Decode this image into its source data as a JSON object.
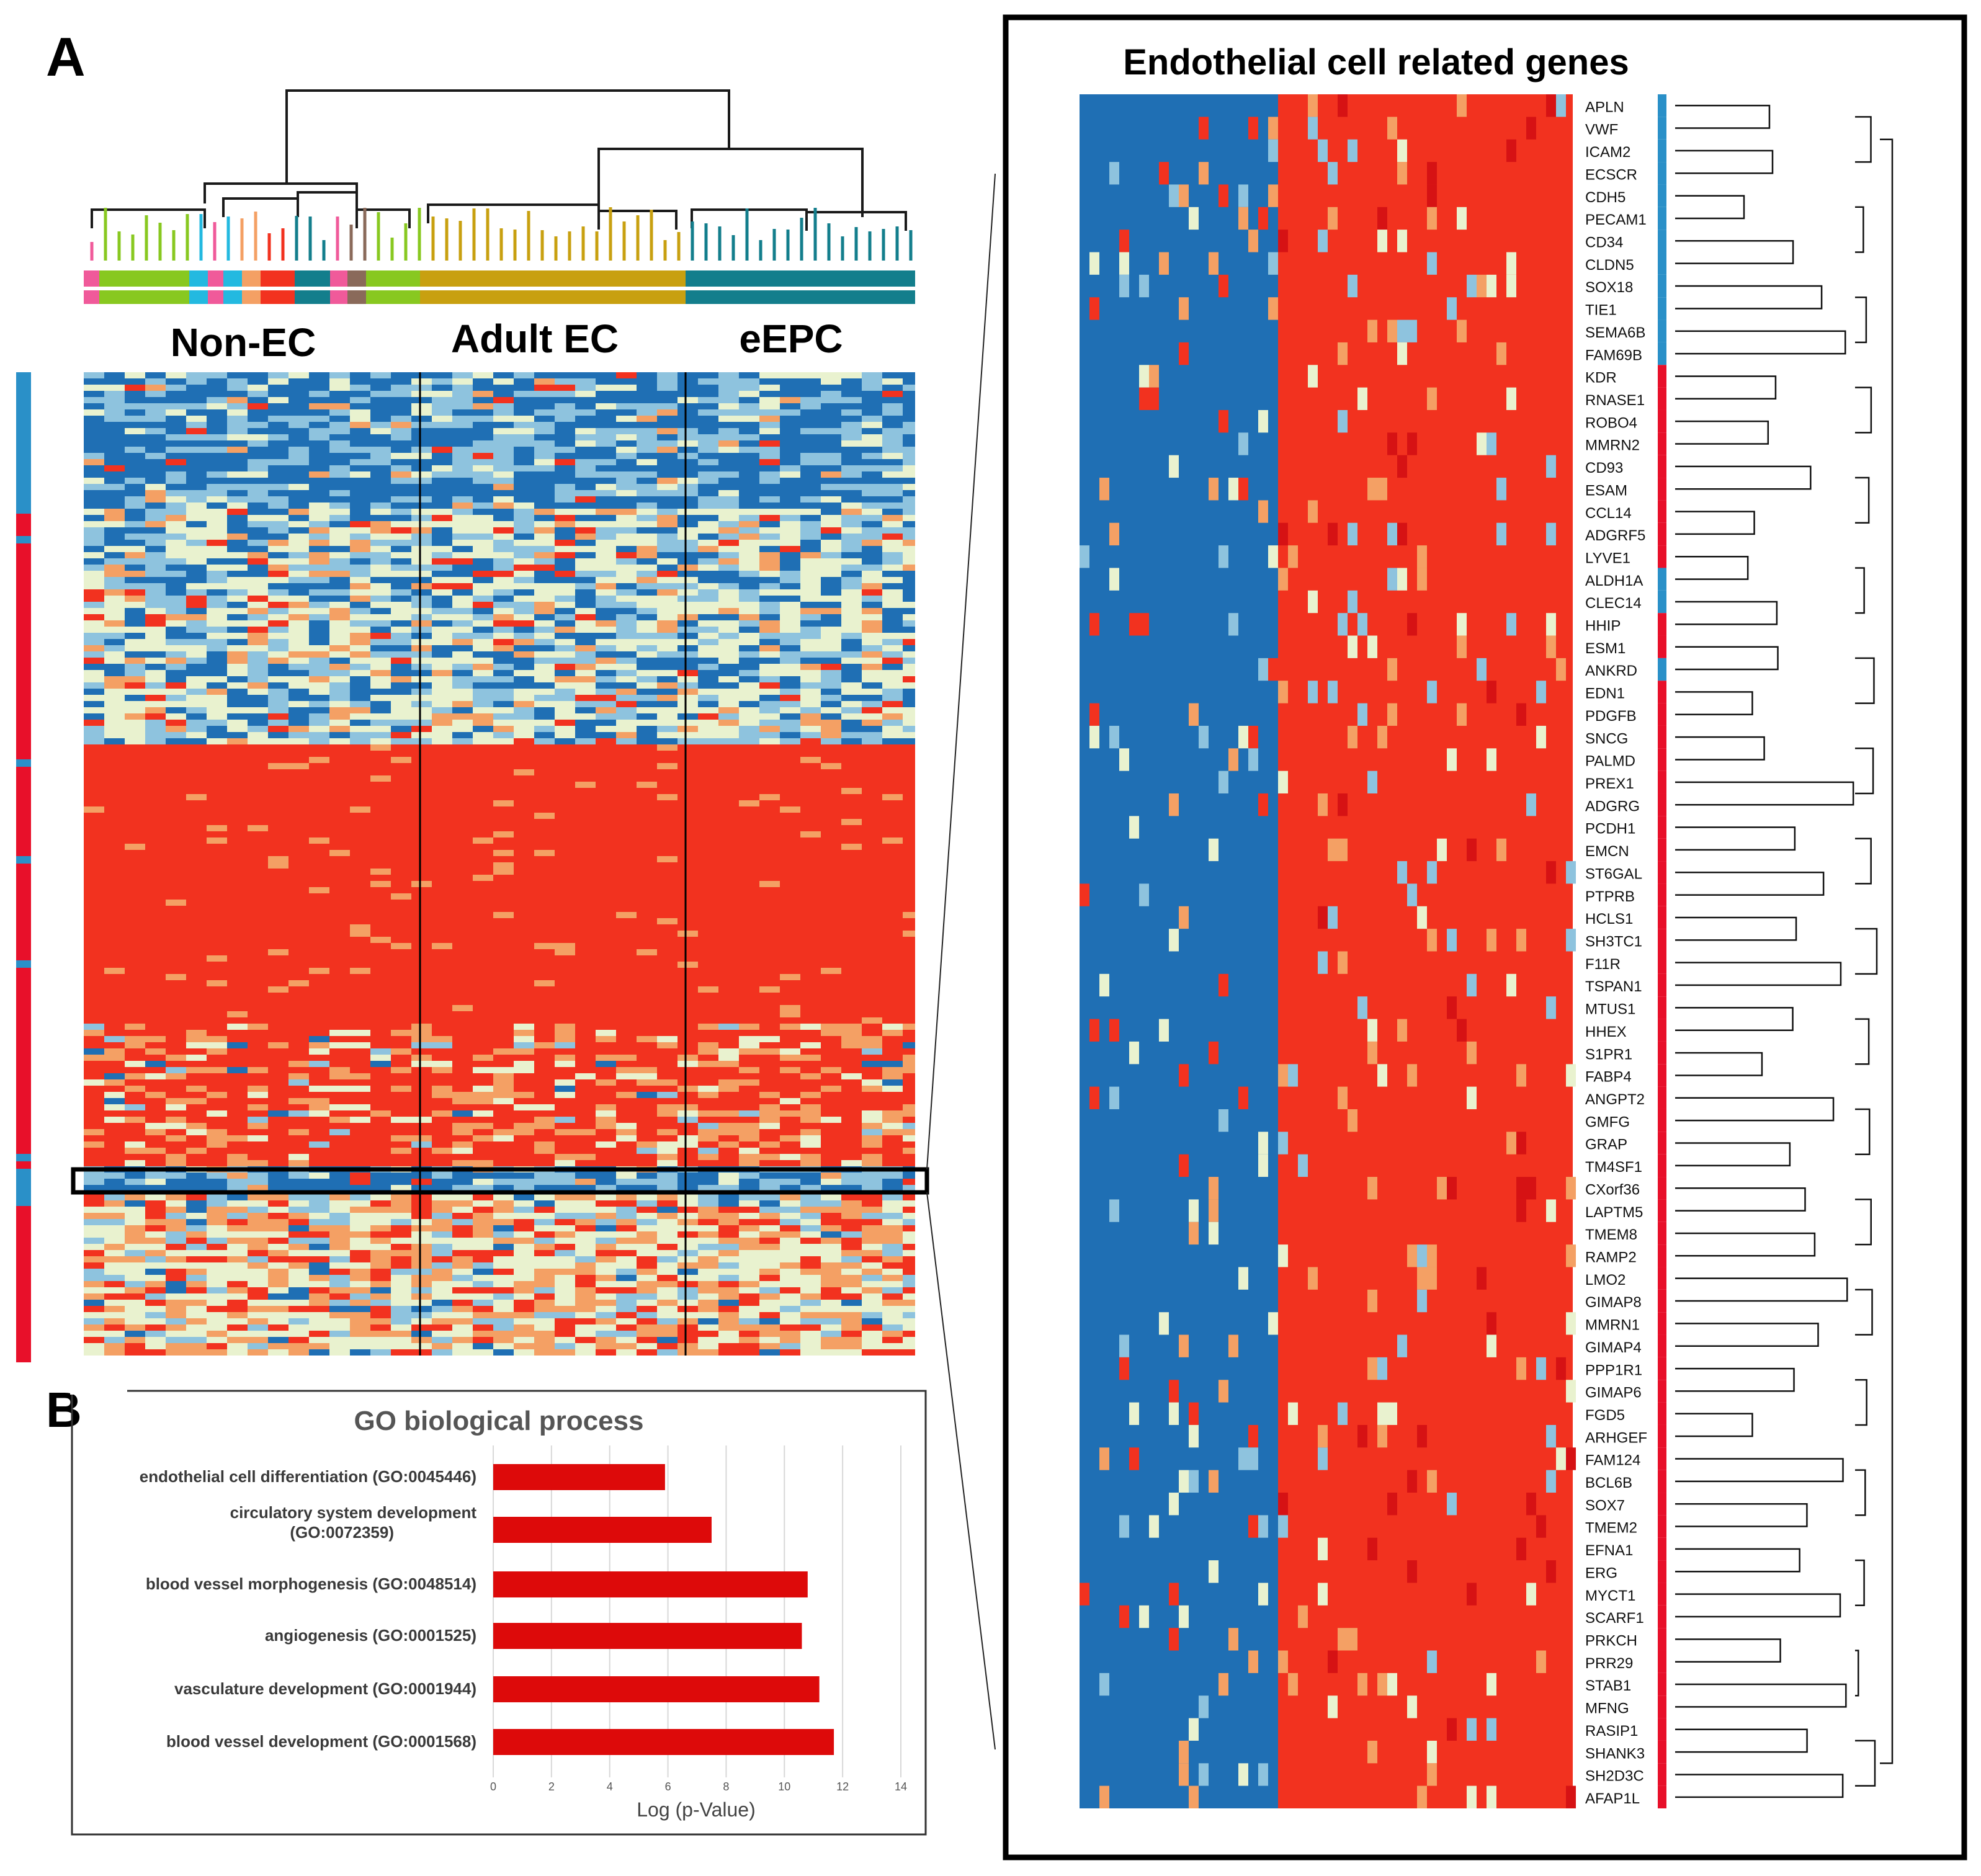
{
  "panels": {
    "a_label": "A",
    "b_label": "B"
  },
  "heatmap": {
    "groups": [
      "Non-EC",
      "Adult EC",
      "eEPC"
    ]
  },
  "palette": {
    "blue": "#1f6fb4",
    "light_blue": "#8ec3de",
    "pale": "#e9f2cf",
    "orange": "#f4a064",
    "red": "#f2321f",
    "dark_red": "#d61214",
    "green": "#88c820",
    "gold": "#c8a010",
    "teal": "#137e8c",
    "pink": "#f05a9a",
    "cyan": "#23b9e0",
    "brown": "#8a6a5a",
    "side_red": "#e8102a",
    "side_blue": "#2a90c8"
  },
  "zoom_panel": {
    "title": "Endothelial cell related genes",
    "genes": [
      "APLN",
      "VWF",
      "ICAM2",
      "ECSCR",
      "CDH5",
      "PECAM1",
      "CD34",
      "CLDN5",
      "SOX18",
      "TIE1",
      "SEMA6B",
      "FAM69B",
      "KDR",
      "RNASE1",
      "ROBO4",
      "MMRN2",
      "CD93",
      "ESAM",
      "CCL14",
      "ADGRF5",
      "LYVE1",
      "ALDH1A",
      "CLEC14",
      "HHIP",
      "ESM1",
      "ANKRD",
      "EDN1",
      "PDGFB",
      "SNCG",
      "PALMD",
      "PREX1",
      "ADGRG",
      "PCDH1",
      "EMCN",
      "ST6GAL",
      "PTPRB",
      "HCLS1",
      "SH3TC1",
      "F11R",
      "TSPAN1",
      "MTUS1",
      "HHEX",
      "S1PR1",
      "FABP4",
      "ANGPT2",
      "GMFG",
      "GRAP",
      "TM4SF1",
      "CXorf36",
      "LAPTM5",
      "TMEM8",
      "RAMP2",
      "LMO2",
      "GIMAP8",
      "MMRN1",
      "GIMAP4",
      "PPP1R1",
      "GIMAP6",
      "FGD5",
      "ARHGEF",
      "FAM124",
      "BCL6B",
      "SOX7",
      "TMEM2",
      "EFNA1",
      "ERG",
      "MYCT1",
      "SCARF1",
      "PRKCH",
      "PRR29",
      "STAB1",
      "MFNG",
      "RASIP1",
      "SHANK3",
      "SH2D3C",
      "AFAP1L"
    ]
  },
  "chart_data": {
    "type": "bar",
    "orientation": "horizontal",
    "title": "GO biological process",
    "xlabel": "Log (p-Value)",
    "ylabel": "",
    "xlim": [
      0,
      14
    ],
    "xticks": [
      "0",
      "2",
      "4",
      "6",
      "8",
      "10",
      "12",
      "14"
    ],
    "categories": [
      "endothelial cell differentiation (GO:0045446)",
      "circulatory system development (GO:0072359)",
      "blood vessel morphogenesis (GO:0048514)",
      "angiogenesis (GO:0001525)",
      "vasculature development (GO:0001944)",
      "blood vessel development (GO:0001568)"
    ],
    "values": [
      5.9,
      7.5,
      10.8,
      10.6,
      11.2,
      11.7
    ],
    "bar_color": "#dd0a0a"
  }
}
